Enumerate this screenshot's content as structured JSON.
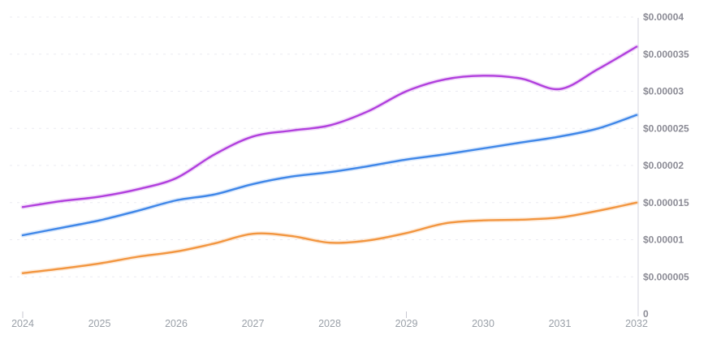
{
  "chart_data": {
    "type": "line",
    "title": "",
    "xlabel": "",
    "ylabel": "",
    "legend": null,
    "grid": {
      "horizontal": true,
      "style": "dashed"
    },
    "x_axis": {
      "labels": [
        "2024",
        "2025",
        "2026",
        "2027",
        "2028",
        "2029",
        "2030",
        "2031",
        "2032"
      ],
      "range": [
        2024,
        2032
      ],
      "tick_marks_visible_at": [
        2024,
        2029
      ]
    },
    "y_axis": {
      "side": "right",
      "range": [
        0,
        4e-05
      ],
      "ticks": [
        {
          "label": "$0.00004",
          "value": 4e-05
        },
        {
          "label": "$0.000035",
          "value": 3.5e-05
        },
        {
          "label": "$0.00003",
          "value": 3e-05
        },
        {
          "label": "$0.000025",
          "value": 2.5e-05
        },
        {
          "label": "$0.00002",
          "value": 2e-05
        },
        {
          "label": "$0.000015",
          "value": 1.5e-05
        },
        {
          "label": "$0.00001",
          "value": 1e-05
        },
        {
          "label": "$0.000005",
          "value": 5e-06
        },
        {
          "label": "0",
          "value": 0
        }
      ]
    },
    "series": [
      {
        "name": "purple-series",
        "color": "#b13fdd",
        "x": [
          2024,
          2024.5,
          2025,
          2025.5,
          2026,
          2026.5,
          2027,
          2027.5,
          2028,
          2028.5,
          2029,
          2029.5,
          2030,
          2030.5,
          2031,
          2031.5,
          2032
        ],
        "values": [
          1.44e-05,
          1.52e-05,
          1.58e-05,
          1.68e-05,
          1.83e-05,
          2.15e-05,
          2.39e-05,
          2.47e-05,
          2.54e-05,
          2.73e-05,
          3e-05,
          3.16e-05,
          3.21e-05,
          3.17e-05,
          3.03e-05,
          3.3e-05,
          3.6e-05
        ]
      },
      {
        "name": "blue-series",
        "color": "#3e86e8",
        "x": [
          2024,
          2024.5,
          2025,
          2025.5,
          2026,
          2026.5,
          2027,
          2027.5,
          2028,
          2028.5,
          2029,
          2029.5,
          2030,
          2030.5,
          2031,
          2031.5,
          2032
        ],
        "values": [
          1.06e-05,
          1.16e-05,
          1.26e-05,
          1.39e-05,
          1.53e-05,
          1.61e-05,
          1.75e-05,
          1.85e-05,
          1.91e-05,
          1.99e-05,
          2.08e-05,
          2.15e-05,
          2.23e-05,
          2.31e-05,
          2.39e-05,
          2.5e-05,
          2.68e-05
        ]
      },
      {
        "name": "orange-series",
        "color": "#f2953f",
        "x": [
          2024,
          2024.5,
          2025,
          2025.5,
          2026,
          2026.5,
          2027,
          2027.5,
          2028,
          2028.5,
          2029,
          2029.5,
          2030,
          2030.5,
          2031,
          2031.5,
          2032
        ],
        "values": [
          5.5e-06,
          6.1e-06,
          6.8e-06,
          7.7e-06,
          8.4e-06,
          9.5e-06,
          1.08e-05,
          1.05e-05,
          9.6e-06,
          9.9e-06,
          1.09e-05,
          1.22e-05,
          1.26e-05,
          1.27e-05,
          1.3e-05,
          1.39e-05,
          1.5e-05
        ]
      }
    ]
  },
  "colors": {
    "background": "#ffffff",
    "gridline": "#ebebf2",
    "axis_line": "#e2e2e9",
    "tick_mark": "#c9c9d2",
    "x_label": "#9aa0a8",
    "y_label": "#8b8b95"
  }
}
